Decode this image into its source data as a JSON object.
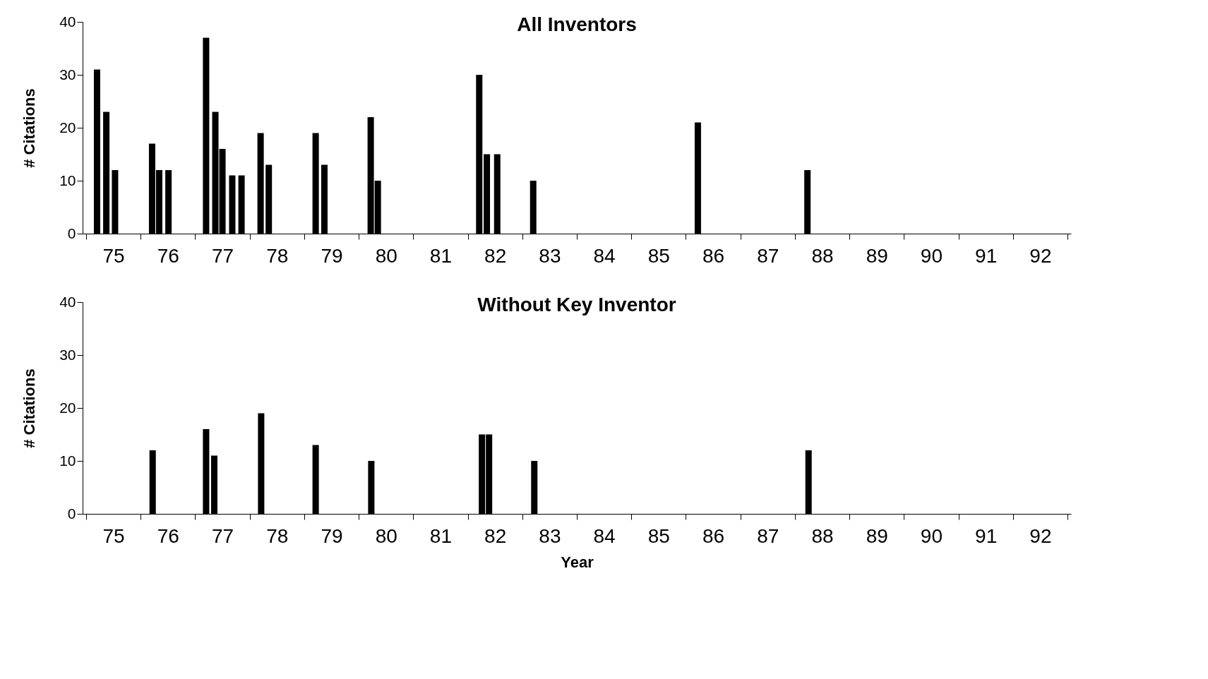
{
  "chart_data": [
    {
      "type": "bar",
      "title": "All Inventors",
      "ylabel": "# Citations",
      "x": [
        74.7,
        74.87,
        75.03,
        75.71,
        75.84,
        76.01,
        76.7,
        76.87,
        77.0,
        77.18,
        77.35,
        77.7,
        77.85,
        78.71,
        78.87,
        79.72,
        79.85,
        81.71,
        81.85,
        82.04,
        82.7,
        85.72,
        87.73
      ],
      "series": [
        {
          "color": "#000000",
          "values": [
            31,
            23,
            12,
            17,
            12,
            12,
            37,
            23,
            16,
            11,
            11,
            19,
            13,
            19,
            13,
            22,
            10,
            30,
            15,
            15,
            10,
            21,
            12
          ]
        }
      ],
      "xlim": [
        74.5,
        92.5
      ],
      "xticks": [
        {
          "value": 74.5,
          "label": null
        },
        {
          "value": 75,
          "label": "75"
        },
        {
          "value": 75.5,
          "label": null
        },
        {
          "value": 76,
          "label": "76"
        },
        {
          "value": 76.5,
          "label": null
        },
        {
          "value": 77,
          "label": "77"
        },
        {
          "value": 77.5,
          "label": null
        },
        {
          "value": 78,
          "label": "78"
        },
        {
          "value": 78.5,
          "label": null
        },
        {
          "value": 79,
          "label": "79"
        },
        {
          "value": 79.5,
          "label": null
        },
        {
          "value": 80,
          "label": "80"
        },
        {
          "value": 80.5,
          "label": null
        },
        {
          "value": 81,
          "label": "81"
        },
        {
          "value": 81.5,
          "label": null
        },
        {
          "value": 82,
          "label": "82"
        },
        {
          "value": 82.5,
          "label": null
        },
        {
          "value": 83,
          "label": "83"
        },
        {
          "value": 83.5,
          "label": null
        },
        {
          "value": 84,
          "label": "84"
        },
        {
          "value": 84.5,
          "label": null
        },
        {
          "value": 85,
          "label": "85"
        },
        {
          "value": 85.5,
          "label": null
        },
        {
          "value": 86,
          "label": "86"
        },
        {
          "value": 86.5,
          "label": null
        },
        {
          "value": 87,
          "label": "87"
        },
        {
          "value": 87.5,
          "label": null
        },
        {
          "value": 88,
          "label": "88"
        },
        {
          "value": 88.5,
          "label": null
        },
        {
          "value": 89,
          "label": "89"
        },
        {
          "value": 89.5,
          "label": null
        },
        {
          "value": 90,
          "label": "90"
        },
        {
          "value": 90.5,
          "label": null
        },
        {
          "value": 91,
          "label": "91"
        },
        {
          "value": 91.5,
          "label": null
        },
        {
          "value": 92,
          "label": "92"
        },
        {
          "value": 92.5,
          "label": null
        }
      ],
      "ylim": [
        0,
        40
      ],
      "yticks": [
        0,
        10,
        20,
        30,
        40
      ]
    },
    {
      "type": "bar",
      "title": "Without Key Inventor",
      "ylabel": "# Citations",
      "xlabel": "Year",
      "x": [
        75.72,
        76.7,
        76.85,
        77.71,
        78.71,
        79.73,
        81.76,
        81.89,
        82.72,
        87.75
      ],
      "series": [
        {
          "color": "#000000",
          "values": [
            12,
            16,
            11,
            19,
            13,
            10,
            15,
            15,
            10,
            12
          ]
        }
      ],
      "xlim": [
        74.5,
        92.5
      ],
      "xticks": [
        {
          "value": 74.5,
          "label": null
        },
        {
          "value": 75,
          "label": "75"
        },
        {
          "value": 75.5,
          "label": null
        },
        {
          "value": 76,
          "label": "76"
        },
        {
          "value": 76.5,
          "label": null
        },
        {
          "value": 77,
          "label": "77"
        },
        {
          "value": 77.5,
          "label": null
        },
        {
          "value": 78,
          "label": "78"
        },
        {
          "value": 78.5,
          "label": null
        },
        {
          "value": 79,
          "label": "79"
        },
        {
          "value": 79.5,
          "label": null
        },
        {
          "value": 80,
          "label": "80"
        },
        {
          "value": 80.5,
          "label": null
        },
        {
          "value": 81,
          "label": "81"
        },
        {
          "value": 81.5,
          "label": null
        },
        {
          "value": 82,
          "label": "82"
        },
        {
          "value": 82.5,
          "label": null
        },
        {
          "value": 83,
          "label": "83"
        },
        {
          "value": 83.5,
          "label": null
        },
        {
          "value": 84,
          "label": "84"
        },
        {
          "value": 84.5,
          "label": null
        },
        {
          "value": 85,
          "label": "85"
        },
        {
          "value": 85.5,
          "label": null
        },
        {
          "value": 86,
          "label": "86"
        },
        {
          "value": 86.5,
          "label": null
        },
        {
          "value": 87,
          "label": "87"
        },
        {
          "value": 87.5,
          "label": null
        },
        {
          "value": 88,
          "label": "88"
        },
        {
          "value": 88.5,
          "label": null
        },
        {
          "value": 89,
          "label": "89"
        },
        {
          "value": 89.5,
          "label": null
        },
        {
          "value": 90,
          "label": "90"
        },
        {
          "value": 90.5,
          "label": null
        },
        {
          "value": 91,
          "label": "91"
        },
        {
          "value": 91.5,
          "label": null
        },
        {
          "value": 92,
          "label": "92"
        },
        {
          "value": 92.5,
          "label": null
        }
      ],
      "ylim": [
        0,
        40
      ],
      "yticks": [
        0,
        10,
        20,
        30,
        40
      ]
    }
  ]
}
